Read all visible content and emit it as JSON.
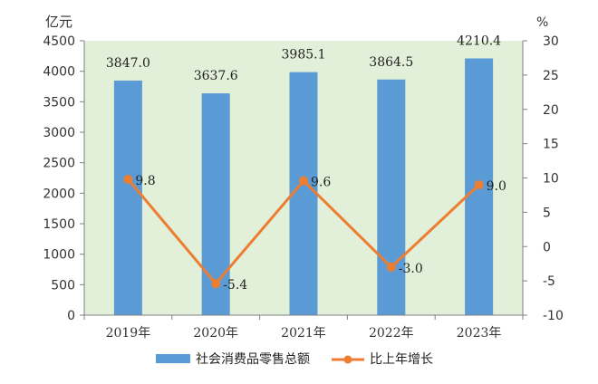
{
  "chart_data": {
    "type": "bar",
    "categories": [
      "2019年",
      "2020年",
      "2021年",
      "2022年",
      "2023年"
    ],
    "series": [
      {
        "name": "社会消费品零售总额",
        "type": "bar",
        "axis": "left",
        "values": [
          3847.0,
          3637.6,
          3985.1,
          3864.5,
          4210.4
        ],
        "labels": [
          "3847.0",
          "3637.6",
          "3985.1",
          "3864.5",
          "4210.4"
        ],
        "color": "#5b9bd5"
      },
      {
        "name": "比上年增长",
        "type": "line",
        "axis": "right",
        "values": [
          9.8,
          -5.4,
          9.6,
          -3.0,
          9.0
        ],
        "labels": [
          "9.8",
          "-5.4",
          "9.6",
          "-3.0",
          "9.0"
        ],
        "color": "#ed7d31"
      }
    ],
    "left_axis": {
      "unit": "亿元",
      "ylim": [
        0,
        4500
      ],
      "ticks": [
        "0",
        "500",
        "1000",
        "1500",
        "2000",
        "2500",
        "3000",
        "3500",
        "4000",
        "4500"
      ]
    },
    "right_axis": {
      "unit": "%",
      "ylim": [
        -10,
        30
      ],
      "ticks": [
        "-10",
        "-5",
        "0",
        "5",
        "10",
        "15",
        "20",
        "25",
        "30"
      ]
    },
    "plot_background": "#e2efd9",
    "grid": false,
    "legend_position": "bottom"
  }
}
